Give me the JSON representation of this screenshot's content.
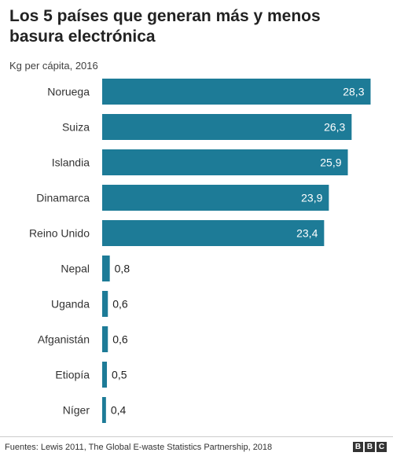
{
  "title": "Los 5 países que generan más y menos basura electrónica",
  "subtitle": "Kg per cápita, 2016",
  "source": "Fuentes: Lewis 2011, The Global E-waste Statistics Partnership, 2018",
  "logo": [
    "B",
    "B",
    "C"
  ],
  "colors": {
    "bar": "#1d7b97",
    "value_inside": "#ffffff",
    "value_outside": "#222222"
  },
  "chart_data": {
    "type": "bar",
    "orientation": "horizontal",
    "title": "Los 5 países que generan más y menos basura electrónica",
    "subtitle": "Kg per cápita, 2016",
    "categories": [
      "Noruega",
      "Suiza",
      "Islandia",
      "Dinamarca",
      "Reino Unido",
      "Nepal",
      "Uganda",
      "Afganistán",
      "Etiopía",
      "Níger"
    ],
    "values": [
      28.3,
      26.3,
      25.9,
      23.9,
      23.4,
      0.8,
      0.6,
      0.6,
      0.5,
      0.4
    ],
    "value_labels": [
      "28,3",
      "26,3",
      "25,9",
      "23,9",
      "23,4",
      "0,8",
      "0,6",
      "0,6",
      "0,5",
      "0,4"
    ],
    "xlim": [
      0,
      30
    ],
    "grid": false,
    "legend": "none"
  }
}
